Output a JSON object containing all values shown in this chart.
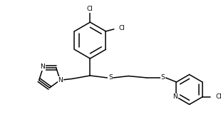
{
  "bg_color": "#ffffff",
  "line_color": "#000000",
  "line_width": 1.1,
  "font_size": 6.5,
  "figsize": [
    3.1,
    1.85
  ],
  "dpi": 100,
  "xlim": [
    0.0,
    10.0
  ],
  "ylim": [
    0.0,
    6.0
  ]
}
